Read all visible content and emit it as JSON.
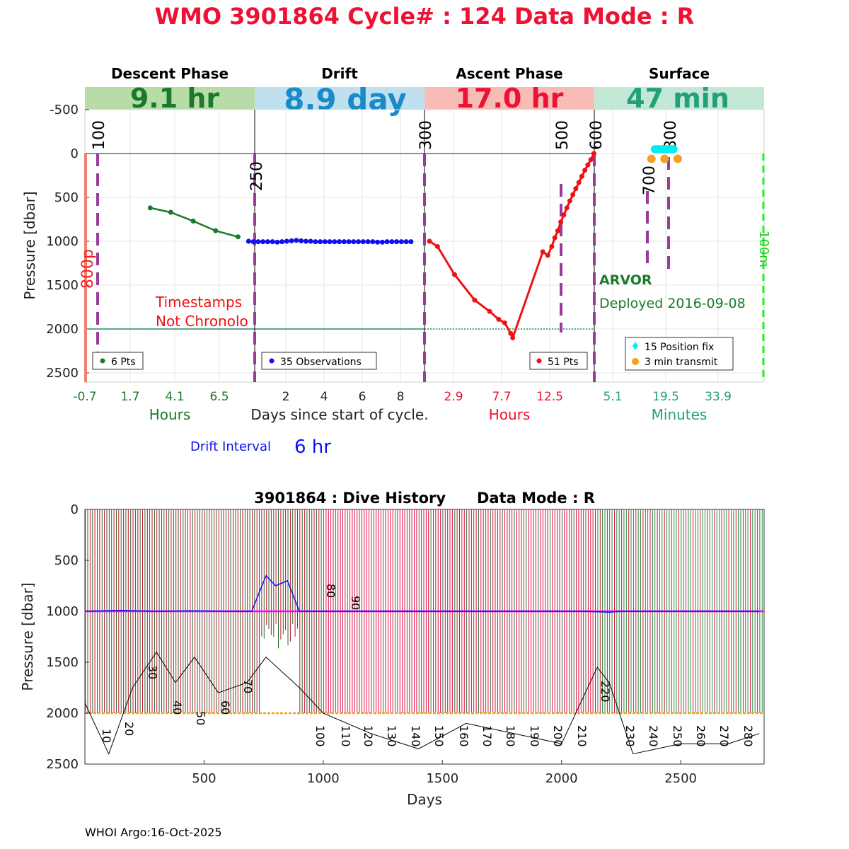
{
  "title": "WMO 3901864   Cycle# : 124   Data Mode : R",
  "footer": "WHOI Argo:16-Oct-2025",
  "colors": {
    "title": "#ee1133",
    "descent": "#1a7a2a",
    "drift": "#1010ee",
    "ascent": "#ee1111",
    "surface": "#22a07a",
    "marker": "#9a3a9a",
    "hline": "#2a8a6a",
    "fix": "#00eeee",
    "transmit": "#f5a020"
  },
  "phases": {
    "descent": {
      "name": "Descent Phase",
      "value": "9.1 hr",
      "ticks": [
        "-0.7",
        "1.7",
        "4.1",
        "6.5"
      ],
      "unit": "Hours",
      "legend": "6 Pts"
    },
    "drift": {
      "name": "Drift",
      "value": "8.9 day",
      "ticks": [
        "2",
        "4",
        "6",
        "8"
      ],
      "unit": "Days since start of cycle.",
      "legend": "35 Observations"
    },
    "ascent": {
      "name": "Ascent Phase",
      "value": "17.0 hr",
      "ticks": [
        "2.9",
        "7.7",
        "12.5"
      ],
      "unit": "Hours",
      "legend": "51 Pts"
    },
    "surface": {
      "name": "Surface",
      "value": "47 min",
      "ticks": [
        "5.1",
        "19.5",
        "33.9"
      ],
      "unit": "Minutes",
      "legend_fix": "15 Position fix",
      "legend_transmit": "3 min transmit"
    }
  },
  "top_ylabel": "Pressure [dbar]",
  "top_yticks": [
    "-500",
    "0",
    "500",
    "1000",
    "1500",
    "2000",
    "2500"
  ],
  "annotations": {
    "timestamps_1": "Timestamps",
    "timestamps_2": "Not Chronolo",
    "float_type": "ARVOR",
    "deployed": "Deployed 2016-09-08",
    "p800": "800p",
    "m100": "100m",
    "drift_interval_label": "Drift Interval",
    "drift_interval_value": "6 hr"
  },
  "marker_labels": [
    "100",
    "250",
    "300",
    "500",
    "600",
    "700",
    "800"
  ],
  "bottom": {
    "title": "3901864 : Dive History      Data Mode : R",
    "ylabel": "Pressure [dbar]",
    "xlabel": "Days",
    "yticks": [
      "0",
      "500",
      "1000",
      "1500",
      "2000",
      "2500"
    ],
    "xticks": [
      "500",
      "1000",
      "1500",
      "2000",
      "2500"
    ],
    "cycle_labels": [
      "10",
      "20",
      "30",
      "40",
      "50",
      "60",
      "70",
      "80",
      "90",
      "100",
      "110",
      "120",
      "130",
      "140",
      "150",
      "160",
      "170",
      "180",
      "190",
      "200",
      "210",
      "220",
      "230",
      "240",
      "250",
      "260",
      "270",
      "280"
    ]
  },
  "chart_data": [
    {
      "type": "line",
      "title": "Descent Phase",
      "xlabel": "Hours",
      "ylabel": "Pressure [dbar]",
      "ylim": [
        2600,
        -700
      ],
      "series": [
        {
          "name": "6 Pts",
          "x": [
            2.8,
            3.9,
            5.1,
            6.3,
            7.5
          ],
          "y": [
            620,
            670,
            770,
            880,
            950
          ]
        }
      ]
    },
    {
      "type": "line",
      "title": "Drift",
      "xlabel": "Days since start of cycle.",
      "ylabel": "Pressure [dbar]",
      "ylim": [
        2600,
        -700
      ],
      "series": [
        {
          "name": "35 Observations",
          "x": [
            0.05,
            0.3,
            0.55,
            0.8,
            1.05,
            1.3,
            1.55,
            1.8,
            2.05,
            2.3,
            2.55,
            2.8,
            3.05,
            3.3,
            3.55,
            3.8,
            4.05,
            4.3,
            4.55,
            4.8,
            5.05,
            5.3,
            5.55,
            5.8,
            6.05,
            6.3,
            6.55,
            6.8,
            7.05,
            7.3,
            7.55,
            7.8,
            8.05,
            8.3,
            8.55
          ],
          "y": [
            1000,
            1005,
            1005,
            1005,
            1005,
            1005,
            1010,
            1005,
            1000,
            995,
            990,
            995,
            1000,
            1000,
            1005,
            1005,
            1005,
            1005,
            1005,
            1005,
            1005,
            1005,
            1005,
            1005,
            1005,
            1005,
            1005,
            1010,
            1010,
            1005,
            1005,
            1005,
            1005,
            1005,
            1005
          ]
        }
      ]
    },
    {
      "type": "line",
      "title": "Ascent Phase",
      "xlabel": "Hours",
      "ylabel": "Pressure [dbar]",
      "ylim": [
        2600,
        -700
      ],
      "series": [
        {
          "name": "51 Pts",
          "x": [
            0.5,
            1.3,
            3.0,
            5.0,
            6.5,
            7.4,
            8.0,
            8.6,
            8.8,
            11.8,
            12.3,
            12.7,
            13.0,
            13.3,
            13.6,
            13.9,
            14.2,
            14.5,
            14.8,
            15.1,
            15.4,
            15.7,
            16.0,
            16.3,
            16.6,
            16.9
          ],
          "y": [
            1000,
            1060,
            1380,
            1670,
            1800,
            1890,
            1930,
            2050,
            2100,
            1120,
            1160,
            1060,
            960,
            880,
            780,
            700,
            620,
            540,
            470,
            400,
            330,
            260,
            190,
            130,
            70,
            0
          ]
        }
      ]
    },
    {
      "type": "scatter",
      "title": "Surface",
      "xlabel": "Minutes",
      "ylabel": "Pressure [dbar]",
      "ylim": [
        2600,
        -700
      ],
      "series": [
        {
          "name": "15 Position fix",
          "x": [
            16.5,
            17.2,
            17.9,
            18.6,
            19.3,
            20.0,
            20.7,
            21.4,
            17.5,
            18.2,
            18.9,
            19.6,
            20.3,
            21.0,
            21.7
          ],
          "y": [
            -50,
            -50,
            -50,
            -50,
            -50,
            -50,
            -50,
            -50,
            -50,
            -50,
            -50,
            -50,
            -50,
            -50,
            -50
          ]
        },
        {
          "name": "3 min transmit",
          "x": [
            15.6,
            19.2,
            22.8
          ],
          "y": [
            60,
            60,
            60
          ]
        }
      ]
    },
    {
      "type": "line",
      "title": "3901864 : Dive History      Data Mode : R",
      "xlabel": "Days",
      "ylabel": "Pressure [dbar]",
      "xlim": [
        0,
        2850
      ],
      "ylim": [
        2500,
        0
      ],
      "series": [
        {
          "name": "Drift pressure",
          "x": [
            0,
            150,
            300,
            450,
            600,
            700,
            760,
            800,
            850,
            900,
            950,
            1100,
            1300,
            1500,
            1700,
            1900,
            2100,
            2200,
            2250,
            2400,
            2600,
            2830
          ],
          "y": [
            1000,
            990,
            1000,
            995,
            1000,
            1000,
            650,
            750,
            700,
            1000,
            1000,
            1000,
            1000,
            1000,
            1000,
            1000,
            1000,
            1010,
            1000,
            1000,
            1000,
            1000
          ]
        },
        {
          "name": "Profile pressure",
          "x": [
            0,
            100,
            200,
            300,
            380,
            460,
            560,
            680,
            760,
            900,
            1000,
            1200,
            1400,
            1600,
            1800,
            2000,
            2150,
            2200,
            2300,
            2500,
            2700,
            2830
          ],
          "y": [
            1900,
            2400,
            1750,
            1400,
            1700,
            1450,
            1800,
            1700,
            1450,
            1750,
            2000,
            2200,
            2350,
            2100,
            2200,
            2300,
            1550,
            1700,
            2400,
            2300,
            2300,
            2200
          ]
        }
      ]
    }
  ]
}
